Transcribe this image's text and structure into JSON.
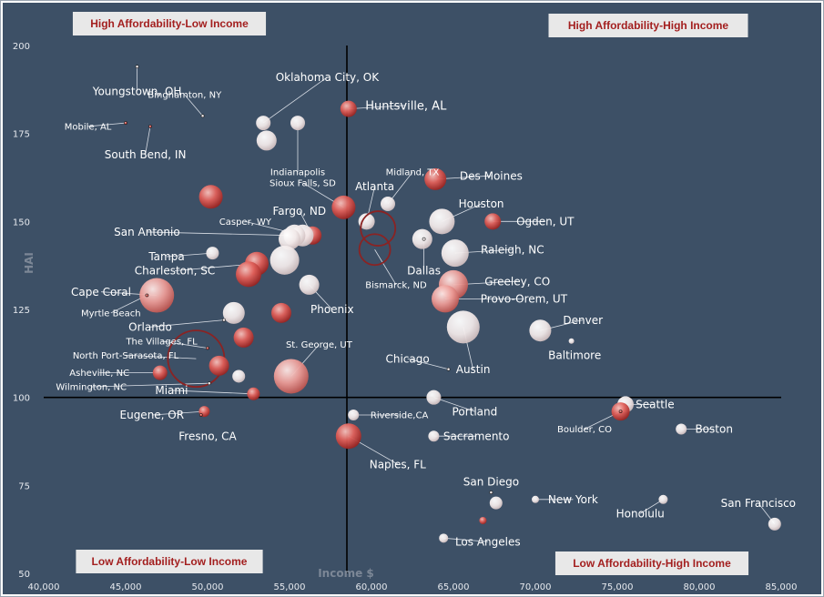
{
  "chart_data": {
    "type": "scatter",
    "xlabel": "Income $",
    "ylabel": "HAI",
    "xlim": [
      40000,
      85000
    ],
    "ylim": [
      50,
      200
    ],
    "x_ticks": [
      "40,000",
      "45,000",
      "50,000",
      "55,000",
      "60,000",
      "65,000",
      "70,000",
      "75,000",
      "80,000",
      "85,000"
    ],
    "y_ticks": [
      "50",
      "75",
      "100",
      "125",
      "150",
      "175",
      "200"
    ],
    "quadrants": [
      {
        "label": "High Affordability-Low Income",
        "position": "top-left"
      },
      {
        "label": "High Affordability-High Income",
        "position": "top-right"
      },
      {
        "label": "Low Affordability-Low Income",
        "position": "bottom-left"
      },
      {
        "label": "Low Affordability-High Income",
        "position": "bottom-right"
      }
    ],
    "crosshair": {
      "income": 58500,
      "hai": 100
    },
    "colors": {
      "background": "#3d5066",
      "gridline": "#000000",
      "bubble_red": "#c8413c",
      "bubble_white": "#eeeeee",
      "quadrant_text": "#a31f1f"
    },
    "points": [
      {
        "label": "Youngstown, OH",
        "income": 45700,
        "hai": 194,
        "size": 1.2,
        "color": "white",
        "fontsize": 12,
        "lx": 45700,
        "ly": 187
      },
      {
        "label": "Binghamton, NY",
        "income": 49700,
        "hai": 180,
        "size": 1.3,
        "color": "white",
        "fontsize": 10,
        "lx": 48600,
        "ly": 186
      },
      {
        "label": "Mobile, AL",
        "income": 45000,
        "hai": 178,
        "size": 1.3,
        "color": "red",
        "fontsize": 10,
        "lx": 42700,
        "ly": 177
      },
      {
        "label": "South Bend, IN",
        "income": 46500,
        "hai": 177,
        "size": 1.3,
        "color": "red",
        "fontsize": 12,
        "lx": 46200,
        "ly": 169
      },
      {
        "label": "Oklahoma City, OK",
        "income": 53400,
        "hai": 178,
        "size": 8,
        "color": "white",
        "fontsize": 12,
        "lx": 57300,
        "ly": 191
      },
      {
        "label": "Indianapolis",
        "income": 55500,
        "hai": 178,
        "size": 8,
        "color": "white",
        "fontsize": 10,
        "lx": 55500,
        "ly": 164
      },
      {
        "label": "",
        "income": 53600,
        "hai": 173,
        "size": 11,
        "color": "white"
      },
      {
        "label": "Huntsville, AL",
        "income": 58600,
        "hai": 182,
        "size": 9,
        "color": "red",
        "fontsize": 13,
        "lx": 62100,
        "ly": 183
      },
      {
        "label": "Midland, TX",
        "income": 61000,
        "hai": 155,
        "size": 8,
        "color": "white",
        "fontsize": 10,
        "lx": 62500,
        "ly": 164
      },
      {
        "label": "Des Moines",
        "income": 63900,
        "hai": 162,
        "size": 12,
        "color": "red",
        "fontsize": 12,
        "lx": 67300,
        "ly": 163
      },
      {
        "label": "Sioux Falls, SD",
        "income": 58300,
        "hai": 154,
        "size": 13,
        "color": "red",
        "fontsize": 10,
        "lx": 55800,
        "ly": 161
      },
      {
        "label": "Atlanta",
        "income": 59700,
        "hai": 150,
        "size": 9,
        "color": "white",
        "fontsize": 12,
        "lx": 60200,
        "ly": 160
      },
      {
        "label": "Houston",
        "income": 64300,
        "hai": 150,
        "size": 14,
        "color": "white",
        "fontsize": 12,
        "lx": 66700,
        "ly": 155
      },
      {
        "label": "Ogden, UT",
        "income": 67400,
        "hai": 150,
        "size": 9,
        "color": "red",
        "fontsize": 12,
        "lx": 70600,
        "ly": 150
      },
      {
        "label": "",
        "income": 60400,
        "hai": 148,
        "size": 19,
        "color": "hollow"
      },
      {
        "label": "Fargo, ND",
        "income": 56400,
        "hai": 146,
        "size": 10,
        "color": "red",
        "fontsize": 12,
        "lx": 55600,
        "ly": 153
      },
      {
        "label": "Casper, WY",
        "income": 55800,
        "hai": 146,
        "size": 12,
        "color": "white",
        "fontsize": 10,
        "lx": 52300,
        "ly": 150
      },
      {
        "label": "San Antonio",
        "income": 55300,
        "hai": 146,
        "size": 12,
        "color": "white",
        "fontsize": 12,
        "lx": 46300,
        "ly": 147
      },
      {
        "label": "",
        "income": 55000,
        "hai": 145,
        "size": 12,
        "color": "white"
      },
      {
        "label": "",
        "income": 50200,
        "hai": 157,
        "size": 13,
        "color": "red"
      },
      {
        "label": "Bismarck, ND",
        "income": 60200,
        "hai": 142,
        "size": 17,
        "color": "hollow",
        "fontsize": 10,
        "lx": 61500,
        "ly": 132
      },
      {
        "label": "",
        "income": 63100,
        "hai": 145,
        "size": 11,
        "color": "white"
      },
      {
        "label": "Dallas",
        "income": 63200,
        "hai": 145,
        "size": 1,
        "color": "white",
        "fontsize": 12,
        "lx": 63200,
        "ly": 136
      },
      {
        "label": "Raleigh, NC",
        "income": 65100,
        "hai": 141,
        "size": 15,
        "color": "white",
        "fontsize": 12,
        "lx": 68600,
        "ly": 142
      },
      {
        "label": "Tampa",
        "income": 50300,
        "hai": 141,
        "size": 7,
        "color": "white",
        "fontsize": 12,
        "lx": 47500,
        "ly": 140
      },
      {
        "label": "Charleston, SC",
        "income": 53000,
        "hai": 138,
        "size": 13,
        "color": "red",
        "fontsize": 12,
        "lx": 48000,
        "ly": 136
      },
      {
        "label": "",
        "income": 52500,
        "hai": 135,
        "size": 14,
        "color": "red"
      },
      {
        "label": "",
        "income": 54700,
        "hai": 139,
        "size": 16,
        "color": "white"
      },
      {
        "label": "Greeley, CO",
        "income": 65000,
        "hai": 132,
        "size": 16,
        "color": "red",
        "fontsize": 12,
        "lx": 68900,
        "ly": 133
      },
      {
        "label": "Provo-Orem, UT",
        "income": 64500,
        "hai": 128,
        "size": 15,
        "color": "red",
        "fontsize": 12,
        "lx": 69300,
        "ly": 128
      },
      {
        "label": "Cape Coral",
        "income": 46900,
        "hai": 129,
        "size": 19,
        "color": "red",
        "fontsize": 12,
        "lx": 43500,
        "ly": 130
      },
      {
        "label": "Myrtle Beach",
        "income": 46300,
        "hai": 129,
        "size": 1,
        "color": "red",
        "fontsize": 10,
        "lx": 44100,
        "ly": 124
      },
      {
        "label": "Phoenix",
        "income": 56200,
        "hai": 132,
        "size": 11,
        "color": "white",
        "fontsize": 12,
        "lx": 57600,
        "ly": 125
      },
      {
        "label": "",
        "income": 51600,
        "hai": 124,
        "size": 12,
        "color": "white"
      },
      {
        "label": "",
        "income": 54500,
        "hai": 124,
        "size": 11,
        "color": "red"
      },
      {
        "label": "Orlando",
        "income": 51000,
        "hai": 122,
        "size": 1,
        "color": "white",
        "fontsize": 12,
        "lx": 46500,
        "ly": 120
      },
      {
        "label": "Denver",
        "income": 70300,
        "hai": 119,
        "size": 12,
        "color": "white",
        "fontsize": 12,
        "lx": 72900,
        "ly": 122
      },
      {
        "label": "Baltimore",
        "income": 72200,
        "hai": 116,
        "size": 3,
        "color": "white",
        "fontsize": 12,
        "lx": 72400,
        "ly": 112
      },
      {
        "label": "Austin",
        "income": 65600,
        "hai": 120,
        "size": 18,
        "color": "white",
        "fontsize": 12,
        "lx": 66200,
        "ly": 108
      },
      {
        "label": "",
        "income": 52200,
        "hai": 117,
        "size": 11,
        "color": "red"
      },
      {
        "label": "The Villages, FL",
        "income": 50000,
        "hai": 114,
        "size": 1,
        "color": "red",
        "fontsize": 10,
        "lx": 47200,
        "ly": 116
      },
      {
        "label": "North Port-Sarasota, FL",
        "income": 49300,
        "hai": 111,
        "size": 31,
        "color": "hollow",
        "fontsize": 10,
        "lx": 45000,
        "ly": 112
      },
      {
        "label": "St. George, UT",
        "income": 55100,
        "hai": 106,
        "size": 19,
        "color": "red",
        "fontsize": 10,
        "lx": 56800,
        "ly": 115
      },
      {
        "label": "Chicago",
        "income": 64700,
        "hai": 108,
        "size": 1.3,
        "color": "white",
        "fontsize": 12,
        "lx": 62200,
        "ly": 111
      },
      {
        "label": "",
        "income": 50700,
        "hai": 109,
        "size": 11,
        "color": "red"
      },
      {
        "label": "Asheville, NC",
        "income": 47100,
        "hai": 107,
        "size": 8,
        "color": "red",
        "fontsize": 10,
        "lx": 43400,
        "ly": 107
      },
      {
        "label": "",
        "income": 51900,
        "hai": 106,
        "size": 7,
        "color": "white"
      },
      {
        "label": "Wilmington, NC",
        "income": 50100,
        "hai": 104,
        "size": 1,
        "color": "white",
        "fontsize": 10,
        "lx": 42900,
        "ly": 103
      },
      {
        "label": "Miami",
        "income": 52800,
        "hai": 101,
        "size": 7,
        "color": "red",
        "fontsize": 12,
        "lx": 47800,
        "ly": 102
      },
      {
        "label": "Portland",
        "income": 63800,
        "hai": 100,
        "size": 8,
        "color": "white",
        "fontsize": 12,
        "lx": 66300,
        "ly": 96
      },
      {
        "label": "Seattle",
        "income": 75500,
        "hai": 98,
        "size": 9,
        "color": "white",
        "fontsize": 12,
        "lx": 77300,
        "ly": 98
      },
      {
        "label": "",
        "income": 75200,
        "hai": 96,
        "size": 10,
        "color": "red"
      },
      {
        "label": "Eugene, OR",
        "income": 49800,
        "hai": 96,
        "size": 6,
        "color": "red",
        "fontsize": 12,
        "lx": 46600,
        "ly": 95
      },
      {
        "label": "Boulder, CO",
        "income": 75200,
        "hai": 96,
        "size": 1,
        "color": "red",
        "fontsize": 10,
        "lx": 73000,
        "ly": 91
      },
      {
        "label": "Fresno, CA",
        "income": 49600,
        "hai": 95,
        "size": 1,
        "color": "red",
        "fontsize": 12,
        "lx": 50000,
        "ly": 89
      },
      {
        "label": "Riverside,CA",
        "income": 58900,
        "hai": 95,
        "size": 6,
        "color": "white",
        "fontsize": 10,
        "lx": 61700,
        "ly": 95
      },
      {
        "label": "Boston",
        "income": 78900,
        "hai": 91,
        "size": 6,
        "color": "white",
        "fontsize": 12,
        "lx": 80900,
        "ly": 91
      },
      {
        "label": "Sacramento",
        "income": 63800,
        "hai": 89,
        "size": 6,
        "color": "white",
        "fontsize": 12,
        "lx": 66400,
        "ly": 89
      },
      {
        "label": "Naples, FL",
        "income": 58600,
        "hai": 89,
        "size": 14,
        "color": "red",
        "fontsize": 12,
        "lx": 61600,
        "ly": 81
      },
      {
        "label": "San Diego",
        "income": 67300,
        "hai": 73,
        "size": 1,
        "color": "white",
        "fontsize": 12,
        "lx": 67300,
        "ly": 76
      },
      {
        "label": "",
        "income": 67600,
        "hai": 70,
        "size": 7,
        "color": "white"
      },
      {
        "label": "New York",
        "income": 70000,
        "hai": 71,
        "size": 4,
        "color": "white",
        "fontsize": 12,
        "lx": 72300,
        "ly": 71
      },
      {
        "label": "Honolulu",
        "income": 77800,
        "hai": 71,
        "size": 5,
        "color": "white",
        "fontsize": 12,
        "lx": 76400,
        "ly": 67
      },
      {
        "label": "San Francisco",
        "income": 84600,
        "hai": 64,
        "size": 7,
        "color": "white",
        "fontsize": 12,
        "lx": 83600,
        "ly": 70
      },
      {
        "label": "",
        "income": 66800,
        "hai": 65,
        "size": 4,
        "color": "red"
      },
      {
        "label": "Los Angeles",
        "income": 64400,
        "hai": 60,
        "size": 5,
        "color": "white",
        "fontsize": 12,
        "lx": 67100,
        "ly": 59
      }
    ]
  }
}
